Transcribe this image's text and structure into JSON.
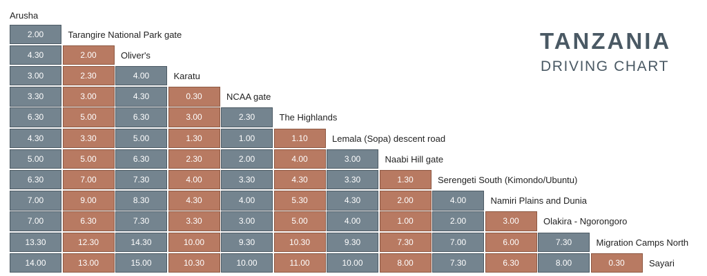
{
  "chart_data": {
    "type": "table",
    "title": "TANZANIA",
    "subtitle": "DRIVING CHART",
    "locations": [
      "Arusha",
      "Tarangire National Park gate",
      "Oliver's",
      "Karatu",
      "NCAA gate",
      "The Highlands",
      "Lemala (Sopa) descent road",
      "Naabi Hill gate",
      "Serengeti South (Kimondo/Ubuntu)",
      "Namiri Plains and Dunia",
      "Olakira - Ngorongoro",
      "Migration Camps North",
      "Sayari"
    ],
    "rows": [
      [
        "2.00"
      ],
      [
        "4.30",
        "2.00"
      ],
      [
        "3.00",
        "2.30",
        "4.00"
      ],
      [
        "3.30",
        "3.00",
        "4.30",
        "0.30"
      ],
      [
        "6.30",
        "5.00",
        "6.30",
        "3.00",
        "2.30"
      ],
      [
        "4.30",
        "3.30",
        "5.00",
        "1.30",
        "1.00",
        "1.10"
      ],
      [
        "5.00",
        "5.00",
        "6.30",
        "2.30",
        "2.00",
        "4.00",
        "3.00"
      ],
      [
        "6.30",
        "7.00",
        "7.30",
        "4.00",
        "3.30",
        "4.30",
        "3.30",
        "1.30"
      ],
      [
        "7.00",
        "9.00",
        "8.30",
        "4.30",
        "4.00",
        "5.30",
        "4.30",
        "2.00",
        "4.00"
      ],
      [
        "7.00",
        "6.30",
        "7.30",
        "3.30",
        "3.00",
        "5.00",
        "4.00",
        "1.00",
        "2.00",
        "3.00"
      ],
      [
        "13.30",
        "12.30",
        "14.30",
        "10.00",
        "9.30",
        "10.30",
        "9.30",
        "7.30",
        "7.00",
        "6.00",
        "7.30"
      ],
      [
        "14.00",
        "13.00",
        "15.00",
        "10.30",
        "10.00",
        "11.00",
        "10.00",
        "8.00",
        "7.30",
        "6.30",
        "8.00",
        "0.30"
      ]
    ],
    "colors": {
      "column_a": "#74848f",
      "column_b": "#b87a62"
    }
  }
}
